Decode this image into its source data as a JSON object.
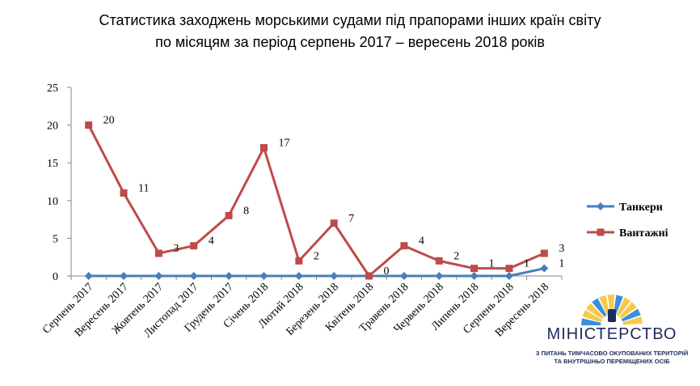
{
  "chart_data": {
    "type": "line",
    "title_line1": "Статистика заходжень морськими судами під прапорами інших країн світу",
    "title_line2": "по місяцям за період серпень 2017 – вересень 2018 років",
    "categories": [
      "Серпень 2017",
      "Вересень 2017",
      "Жовтень 2017",
      "Листопад 2017",
      "Грудень 2017",
      "Січень 2018",
      "Лютий 2018",
      "Березень 2018",
      "Квітень 2018",
      "Травень 2018",
      "Червень 2018",
      "Липень 2018",
      "Серпень 2018",
      "Вересень 2018"
    ],
    "series": [
      {
        "name": "Танкери",
        "values": [
          0,
          0,
          0,
          0,
          0,
          0,
          0,
          0,
          0,
          0,
          0,
          0,
          0,
          1
        ],
        "color": "#4a7ebb",
        "marker": "diamond",
        "labels_shown": [
          13
        ]
      },
      {
        "name": "Вантажні",
        "values": [
          20,
          11,
          3,
          4,
          8,
          17,
          2,
          7,
          0,
          4,
          2,
          1,
          1,
          3
        ],
        "color": "#be4b48",
        "marker": "square",
        "labels_shown": [
          0,
          1,
          2,
          3,
          4,
          5,
          6,
          7,
          8,
          9,
          10,
          11,
          12,
          13
        ]
      }
    ],
    "ylim": [
      0,
      25
    ],
    "yticks": [
      0,
      5,
      10,
      15,
      20,
      25
    ],
    "grid": false,
    "legend": "right"
  },
  "logo": {
    "name": "МІНІСТЕРСТВО",
    "sub1": "З ПИТАНЬ ТИМЧАСОВО ОКУПОВАНИХ ТЕРИТОРІЙ",
    "sub2": "ТА ВНУТРІШНЬО ПЕРЕМІЩЕНИХ ОСІБ",
    "colors": [
      "#f7c948",
      "#3d8fd6",
      "#1d2b5a"
    ]
  }
}
